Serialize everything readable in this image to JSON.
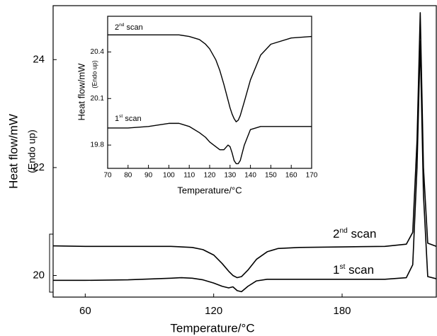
{
  "chart_data": [
    {
      "type": "line",
      "x_label": "Temperature/°C",
      "y_label": "Heat flow/mW",
      "y_label_annotation": "(Endo up)",
      "xlim": [
        45,
        224
      ],
      "ylim": [
        19.6,
        25
      ],
      "xticks": [
        60,
        120,
        180
      ],
      "yticks": [
        20,
        22,
        24
      ],
      "x": [
        45,
        60,
        80,
        100,
        105,
        110,
        115,
        120,
        124,
        127,
        129,
        131,
        133,
        136,
        140,
        145,
        150,
        160,
        180,
        200,
        210,
        213,
        215,
        216.5,
        218,
        220,
        224
      ],
      "series": [
        {
          "name": "2nd scan",
          "color": "#000000",
          "values": [
            20.55,
            20.54,
            20.54,
            20.54,
            20.53,
            20.52,
            20.48,
            20.38,
            20.22,
            20.08,
            20.0,
            19.96,
            19.98,
            20.1,
            20.3,
            20.44,
            20.5,
            20.52,
            20.53,
            20.54,
            20.58,
            20.8,
            22.5,
            24.87,
            22.0,
            20.6,
            20.54
          ]
        },
        {
          "name": "1st scan",
          "color": "#000000",
          "values": [
            19.91,
            19.91,
            19.92,
            19.95,
            19.96,
            19.95,
            19.92,
            19.86,
            19.8,
            19.77,
            19.79,
            19.72,
            19.7,
            19.8,
            19.9,
            19.93,
            19.93,
            19.93,
            19.93,
            19.93,
            19.96,
            20.2,
            22.0,
            24.34,
            21.5,
            19.98,
            19.94
          ]
        }
      ]
    },
    {
      "type": "line",
      "x_label": "Temperature/°C",
      "y_label": "Heat flow/mW",
      "y_label_annotation": "(Endo up)",
      "xlim": [
        70,
        170
      ],
      "ylim": [
        19.65,
        20.63
      ],
      "xticks": [
        70,
        80,
        90,
        100,
        110,
        120,
        130,
        140,
        150,
        160,
        170
      ],
      "yticks": [
        19.8,
        20.1,
        20.4
      ],
      "x": [
        70,
        80,
        90,
        100,
        105,
        110,
        115,
        118,
        120,
        123,
        125,
        127,
        129,
        130,
        131,
        132,
        133,
        134,
        135,
        137,
        140,
        145,
        150,
        160,
        170
      ],
      "series": [
        {
          "name": "2nd scan",
          "color": "#000000",
          "values": [
            20.51,
            20.51,
            20.51,
            20.51,
            20.51,
            20.5,
            20.48,
            20.45,
            20.42,
            20.35,
            20.28,
            20.19,
            20.09,
            20.04,
            20.0,
            19.97,
            19.95,
            19.96,
            19.99,
            20.08,
            20.22,
            20.38,
            20.45,
            20.49,
            20.5
          ]
        },
        {
          "name": "1st scan",
          "color": "#000000",
          "values": [
            19.91,
            19.91,
            19.92,
            19.94,
            19.94,
            19.92,
            19.88,
            19.85,
            19.82,
            19.79,
            19.77,
            19.77,
            19.8,
            19.79,
            19.75,
            19.7,
            19.68,
            19.68,
            19.7,
            19.8,
            19.9,
            19.92,
            19.92,
            19.92,
            19.92
          ]
        }
      ]
    }
  ]
}
